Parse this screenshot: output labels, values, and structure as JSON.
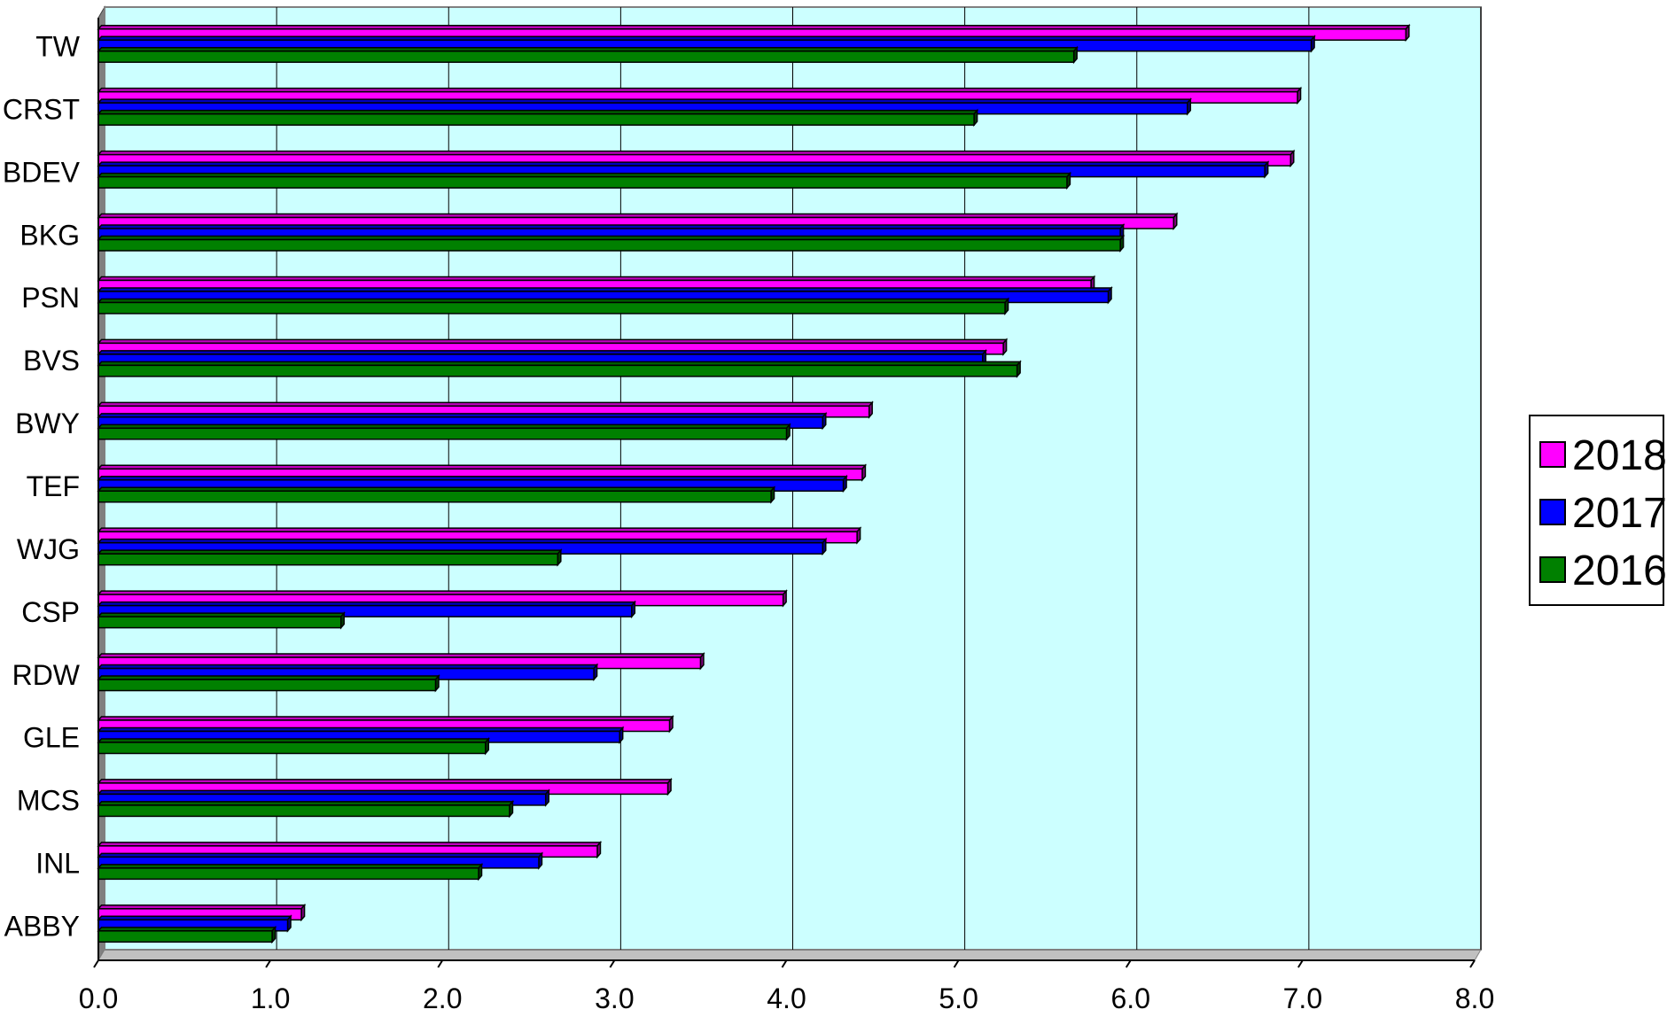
{
  "chart_data": {
    "type": "bar",
    "orientation": "horizontal",
    "categories": [
      "TW",
      "CRST",
      "BDEV",
      "BKG",
      "PSN",
      "BVS",
      "BWY",
      "TEF",
      "WJG",
      "CSP",
      "RDW",
      "GLE",
      "MCS",
      "INL",
      "ABBY"
    ],
    "series": [
      {
        "name": "2018",
        "color": "#ff00ff",
        "values": [
          7.6,
          6.97,
          6.93,
          6.25,
          5.77,
          5.26,
          4.48,
          4.44,
          4.41,
          3.98,
          3.5,
          3.32,
          3.31,
          2.9,
          1.18
        ]
      },
      {
        "name": "2017",
        "color": "#0000ff",
        "values": [
          7.05,
          6.33,
          6.78,
          5.94,
          5.87,
          5.14,
          4.21,
          4.33,
          4.21,
          3.1,
          2.88,
          3.03,
          2.6,
          2.56,
          1.1
        ]
      },
      {
        "name": "2016",
        "color": "#008000",
        "values": [
          5.67,
          5.09,
          5.63,
          5.94,
          5.27,
          5.34,
          4.0,
          3.91,
          2.67,
          1.41,
          1.96,
          2.25,
          2.39,
          2.21,
          1.01
        ]
      }
    ],
    "xlim": [
      0,
      8
    ],
    "x_ticks": [
      "0.0",
      "1.0",
      "2.0",
      "3.0",
      "4.0",
      "5.0",
      "6.0",
      "7.0",
      "8.0"
    ],
    "title": "",
    "xlabel": "",
    "ylabel": "",
    "grid": true,
    "legend_position": "right",
    "plot_background": "#ccffff"
  }
}
